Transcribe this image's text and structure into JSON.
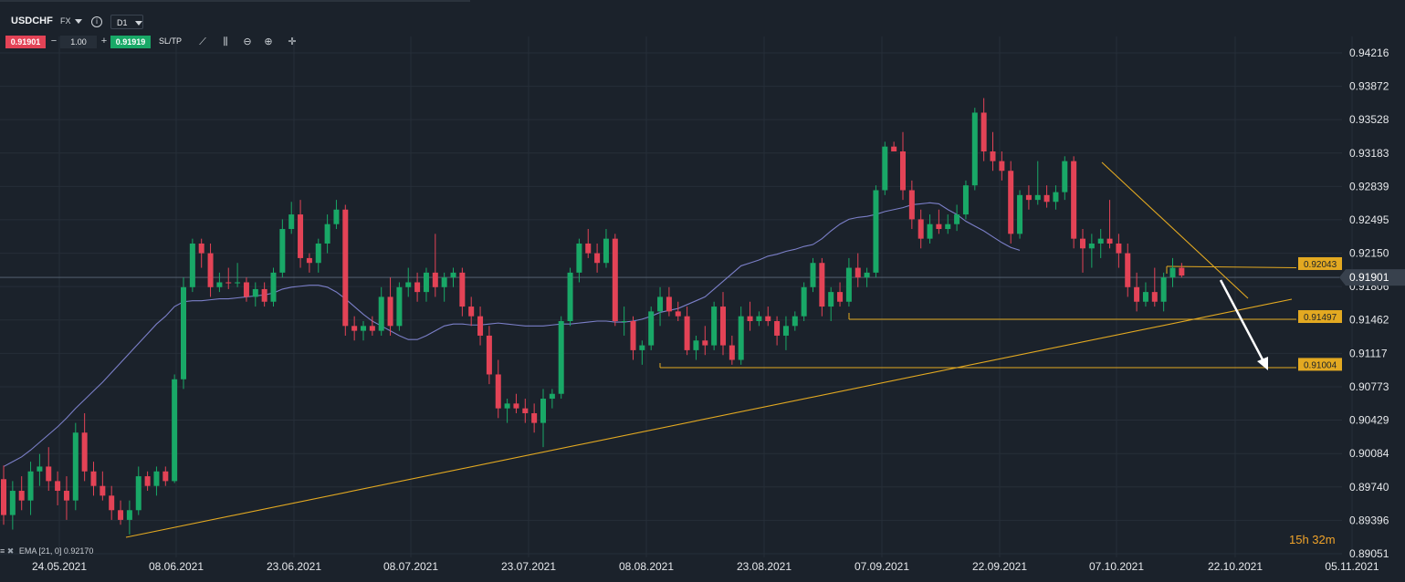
{
  "toolbar": {
    "symbol": "USDCHF",
    "market": "FX",
    "info_icon": "i",
    "timeframe": "D1",
    "bid": "0.91901",
    "minus": "−",
    "lot": "1.00",
    "plus": "+",
    "ask": "0.91919",
    "sltp": "SL/TP",
    "tools": [
      {
        "name": "line-chart-icon",
        "glyph": "⟋"
      },
      {
        "name": "indicators-icon",
        "glyph": "⫼"
      },
      {
        "name": "zoom-out-icon",
        "glyph": "⊖"
      },
      {
        "name": "zoom-in-icon",
        "glyph": "⊕"
      },
      {
        "name": "crosshair-icon",
        "glyph": "✛"
      }
    ]
  },
  "indicator": {
    "settings_icon": "≡",
    "close_icon": "✖",
    "label": "EMA [21, 0] 0.92170"
  },
  "countdown": "15h 32m",
  "colors": {
    "background": "#1b222b",
    "grid": "#262e38",
    "bull": "#19a867",
    "bear": "#e34356",
    "ema": "#7b7fc8",
    "trend": "#e3a921",
    "arrow": "#ffffff"
  },
  "chart_data": {
    "type": "candlestick",
    "symbol": "USDCHF",
    "timeframe": "D1",
    "ylim": [
      0.89051,
      0.94216
    ],
    "y_ticks": [
      "0.94216",
      "0.93872",
      "0.93528",
      "0.93183",
      "0.92839",
      "0.92495",
      "0.92150",
      "0.91806",
      "0.91462",
      "0.91117",
      "0.90773",
      "0.90429",
      "0.90084",
      "0.89740",
      "0.89396",
      "0.89051"
    ],
    "x_ticks": [
      "24.05.2021",
      "08.06.2021",
      "23.06.2021",
      "08.07.2021",
      "23.07.2021",
      "08.08.2021",
      "23.08.2021",
      "07.09.2021",
      "22.09.2021",
      "07.10.2021",
      "22.10.2021",
      "05.11.2021"
    ],
    "current_price": "0.91901",
    "price_tags": [
      {
        "label": "0.92043",
        "value": 0.92043
      },
      {
        "label": "0.91497",
        "value": 0.91497
      },
      {
        "label": "0.91004",
        "value": 0.91004
      }
    ],
    "candles": [
      [
        0.8982,
        0.8996,
        0.8935,
        0.8945
      ],
      [
        0.8945,
        0.898,
        0.893,
        0.897
      ],
      [
        0.897,
        0.8985,
        0.895,
        0.896
      ],
      [
        0.896,
        0.9,
        0.8945,
        0.899
      ],
      [
        0.899,
        0.9008,
        0.8975,
        0.8995
      ],
      [
        0.8995,
        0.9015,
        0.897,
        0.898
      ],
      [
        0.898,
        0.899,
        0.8955,
        0.897
      ],
      [
        0.897,
        0.8985,
        0.894,
        0.896
      ],
      [
        0.896,
        0.904,
        0.895,
        0.903
      ],
      [
        0.903,
        0.905,
        0.898,
        0.899
      ],
      [
        0.899,
        0.9,
        0.8965,
        0.8975
      ],
      [
        0.8975,
        0.899,
        0.896,
        0.8965
      ],
      [
        0.8965,
        0.8975,
        0.894,
        0.895
      ],
      [
        0.895,
        0.896,
        0.8935,
        0.894
      ],
      [
        0.894,
        0.896,
        0.8925,
        0.895
      ],
      [
        0.895,
        0.8995,
        0.8945,
        0.8985
      ],
      [
        0.8985,
        0.899,
        0.897,
        0.8975
      ],
      [
        0.8975,
        0.8995,
        0.8965,
        0.899
      ],
      [
        0.899,
        0.8995,
        0.8975,
        0.898
      ],
      [
        0.898,
        0.909,
        0.8978,
        0.9085
      ],
      [
        0.9085,
        0.919,
        0.9075,
        0.918
      ],
      [
        0.918,
        0.923,
        0.9175,
        0.9225
      ],
      [
        0.9225,
        0.923,
        0.92,
        0.9215
      ],
      [
        0.9215,
        0.9225,
        0.917,
        0.918
      ],
      [
        0.918,
        0.9195,
        0.9175,
        0.9185
      ],
      [
        0.9185,
        0.92,
        0.9178,
        0.9184
      ],
      [
        0.9184,
        0.9205,
        0.918,
        0.9185
      ],
      [
        0.9185,
        0.919,
        0.9165,
        0.917
      ],
      [
        0.917,
        0.9185,
        0.916,
        0.9178
      ],
      [
        0.9178,
        0.9185,
        0.916,
        0.9165
      ],
      [
        0.9165,
        0.92,
        0.916,
        0.9195
      ],
      [
        0.9195,
        0.925,
        0.919,
        0.924
      ],
      [
        0.924,
        0.9268,
        0.9235,
        0.9255
      ],
      [
        0.9255,
        0.927,
        0.92,
        0.921
      ],
      [
        0.921,
        0.9215,
        0.9195,
        0.9205
      ],
      [
        0.9205,
        0.923,
        0.9195,
        0.9225
      ],
      [
        0.9225,
        0.9255,
        0.9215,
        0.9245
      ],
      [
        0.9245,
        0.927,
        0.924,
        0.926
      ],
      [
        0.926,
        0.9265,
        0.913,
        0.914
      ],
      [
        0.914,
        0.915,
        0.9125,
        0.9135
      ],
      [
        0.9135,
        0.9145,
        0.9125,
        0.914
      ],
      [
        0.914,
        0.915,
        0.913,
        0.9135
      ],
      [
        0.9135,
        0.918,
        0.913,
        0.917
      ],
      [
        0.917,
        0.919,
        0.913,
        0.914
      ],
      [
        0.914,
        0.9185,
        0.9135,
        0.918
      ],
      [
        0.918,
        0.92,
        0.917,
        0.9185
      ],
      [
        0.9185,
        0.9195,
        0.9165,
        0.9175
      ],
      [
        0.9175,
        0.92,
        0.9165,
        0.9195
      ],
      [
        0.9195,
        0.9235,
        0.917,
        0.918
      ],
      [
        0.918,
        0.9195,
        0.9165,
        0.919
      ],
      [
        0.919,
        0.92,
        0.918,
        0.9195
      ],
      [
        0.9195,
        0.92,
        0.915,
        0.916
      ],
      [
        0.916,
        0.917,
        0.914,
        0.915
      ],
      [
        0.915,
        0.916,
        0.912,
        0.913
      ],
      [
        0.913,
        0.914,
        0.908,
        0.909
      ],
      [
        0.909,
        0.9105,
        0.9045,
        0.9055
      ],
      [
        0.9055,
        0.9065,
        0.904,
        0.906
      ],
      [
        0.906,
        0.907,
        0.905,
        0.9055
      ],
      [
        0.9055,
        0.9065,
        0.904,
        0.905
      ],
      [
        0.905,
        0.906,
        0.903,
        0.904
      ],
      [
        0.904,
        0.9075,
        0.9015,
        0.9065
      ],
      [
        0.9065,
        0.9075,
        0.9055,
        0.907
      ],
      [
        0.907,
        0.915,
        0.9065,
        0.9145
      ],
      [
        0.9145,
        0.92,
        0.914,
        0.9195
      ],
      [
        0.9195,
        0.923,
        0.9185,
        0.9225
      ],
      [
        0.9225,
        0.924,
        0.921,
        0.9215
      ],
      [
        0.9215,
        0.9225,
        0.9195,
        0.9205
      ],
      [
        0.9205,
        0.924,
        0.92,
        0.923
      ],
      [
        0.923,
        0.9235,
        0.914,
        0.9145
      ],
      [
        0.9145,
        0.916,
        0.913,
        0.9145
      ],
      [
        0.9145,
        0.915,
        0.9105,
        0.9115
      ],
      [
        0.9115,
        0.9125,
        0.91,
        0.912
      ],
      [
        0.912,
        0.916,
        0.9115,
        0.9155
      ],
      [
        0.9155,
        0.918,
        0.914,
        0.917
      ],
      [
        0.917,
        0.918,
        0.915,
        0.9155
      ],
      [
        0.9155,
        0.9165,
        0.9145,
        0.915
      ],
      [
        0.915,
        0.916,
        0.911,
        0.9115
      ],
      [
        0.9115,
        0.913,
        0.9105,
        0.9125
      ],
      [
        0.9125,
        0.914,
        0.911,
        0.912
      ],
      [
        0.912,
        0.9165,
        0.9115,
        0.916
      ],
      [
        0.916,
        0.9175,
        0.911,
        0.912
      ],
      [
        0.912,
        0.913,
        0.91,
        0.9105
      ],
      [
        0.9105,
        0.916,
        0.91,
        0.915
      ],
      [
        0.915,
        0.9165,
        0.9135,
        0.9145
      ],
      [
        0.9145,
        0.9155,
        0.914,
        0.915
      ],
      [
        0.915,
        0.916,
        0.914,
        0.9145
      ],
      [
        0.9145,
        0.915,
        0.912,
        0.913
      ],
      [
        0.913,
        0.915,
        0.9115,
        0.914
      ],
      [
        0.914,
        0.9155,
        0.9135,
        0.915
      ],
      [
        0.915,
        0.9185,
        0.9145,
        0.918
      ],
      [
        0.918,
        0.921,
        0.9175,
        0.9205
      ],
      [
        0.9205,
        0.921,
        0.915,
        0.916
      ],
      [
        0.916,
        0.918,
        0.9145,
        0.9175
      ],
      [
        0.9175,
        0.9185,
        0.916,
        0.9165
      ],
      [
        0.9165,
        0.921,
        0.916,
        0.92
      ],
      [
        0.92,
        0.9215,
        0.918,
        0.919
      ],
      [
        0.919,
        0.92,
        0.918,
        0.9195
      ],
      [
        0.9195,
        0.9285,
        0.919,
        0.928
      ],
      [
        0.928,
        0.933,
        0.9275,
        0.9325
      ],
      [
        0.9325,
        0.933,
        0.932,
        0.932
      ],
      [
        0.932,
        0.934,
        0.927,
        0.928
      ],
      [
        0.928,
        0.929,
        0.924,
        0.925
      ],
      [
        0.925,
        0.926,
        0.922,
        0.923
      ],
      [
        0.923,
        0.9255,
        0.9225,
        0.9245
      ],
      [
        0.9245,
        0.926,
        0.9235,
        0.924
      ],
      [
        0.924,
        0.9255,
        0.9235,
        0.9245
      ],
      [
        0.9245,
        0.9265,
        0.9238,
        0.9255
      ],
      [
        0.9255,
        0.929,
        0.925,
        0.9285
      ],
      [
        0.9285,
        0.9365,
        0.928,
        0.936
      ],
      [
        0.936,
        0.9375,
        0.931,
        0.932
      ],
      [
        0.932,
        0.934,
        0.93,
        0.931
      ],
      [
        0.931,
        0.932,
        0.929,
        0.93
      ],
      [
        0.93,
        0.931,
        0.9225,
        0.9235
      ],
      [
        0.9235,
        0.928,
        0.923,
        0.9275
      ],
      [
        0.9275,
        0.9285,
        0.926,
        0.927
      ],
      [
        0.927,
        0.931,
        0.9265,
        0.9275
      ],
      [
        0.9275,
        0.9285,
        0.9262,
        0.9268
      ],
      [
        0.9268,
        0.9285,
        0.926,
        0.9278
      ],
      [
        0.9278,
        0.9315,
        0.927,
        0.931
      ],
      [
        0.931,
        0.9315,
        0.922,
        0.923
      ],
      [
        0.923,
        0.924,
        0.9195,
        0.922
      ],
      [
        0.922,
        0.9235,
        0.92,
        0.9225
      ],
      [
        0.9225,
        0.924,
        0.921,
        0.923
      ],
      [
        0.923,
        0.927,
        0.922,
        0.9225
      ],
      [
        0.9225,
        0.9235,
        0.92,
        0.9215
      ],
      [
        0.9215,
        0.9225,
        0.917,
        0.918
      ],
      [
        0.918,
        0.9195,
        0.9155,
        0.9165
      ],
      [
        0.9165,
        0.9185,
        0.916,
        0.9175
      ],
      [
        0.9175,
        0.92,
        0.916,
        0.9165
      ],
      [
        0.9165,
        0.9195,
        0.9155,
        0.919
      ],
      [
        0.919,
        0.921,
        0.918,
        0.92
      ],
      [
        0.92,
        0.9205,
        0.919,
        0.9192
      ]
    ],
    "ema_start_index": 20,
    "ema_21": [
      0.8995,
      0.9,
      0.9005,
      0.9012,
      0.902,
      0.9028,
      0.9036,
      0.9045,
      0.9055,
      0.9064,
      0.9073,
      0.9082,
      0.9092,
      0.9102,
      0.9112,
      0.9122,
      0.9132,
      0.9142,
      0.915,
      0.916,
      0.9165,
      0.9166,
      0.9166,
      0.9167,
      0.9168,
      0.9168,
      0.9169,
      0.917,
      0.9171,
      0.9172,
      0.9174,
      0.9178,
      0.918,
      0.9181,
      0.9182,
      0.9182,
      0.918,
      0.9175,
      0.9168,
      0.916,
      0.9152,
      0.9145,
      0.914,
      0.9135,
      0.913,
      0.9126,
      0.9126,
      0.913,
      0.9135,
      0.914,
      0.9142,
      0.9142,
      0.9141,
      0.9141,
      0.9142,
      0.9143,
      0.9142,
      0.9141,
      0.914,
      0.914,
      0.914,
      0.9141,
      0.9142,
      0.9142,
      0.9143,
      0.9144,
      0.9145,
      0.9145,
      0.9144,
      0.9144,
      0.9145,
      0.9147,
      0.915,
      0.9154,
      0.9156,
      0.9158,
      0.9162,
      0.9166,
      0.917,
      0.9178,
      0.9186,
      0.9194,
      0.9202,
      0.9205,
      0.9208,
      0.9212,
      0.9214,
      0.9217,
      0.9219,
      0.9222,
      0.9224,
      0.923,
      0.9238,
      0.9245,
      0.925,
      0.9252,
      0.9253,
      0.9255,
      0.9258,
      0.926,
      0.9262,
      0.9265,
      0.9266,
      0.9267,
      0.9266,
      0.926,
      0.9255,
      0.9248,
      0.9243,
      0.9238,
      0.9232,
      0.9226,
      0.9221,
      0.9218
    ]
  }
}
